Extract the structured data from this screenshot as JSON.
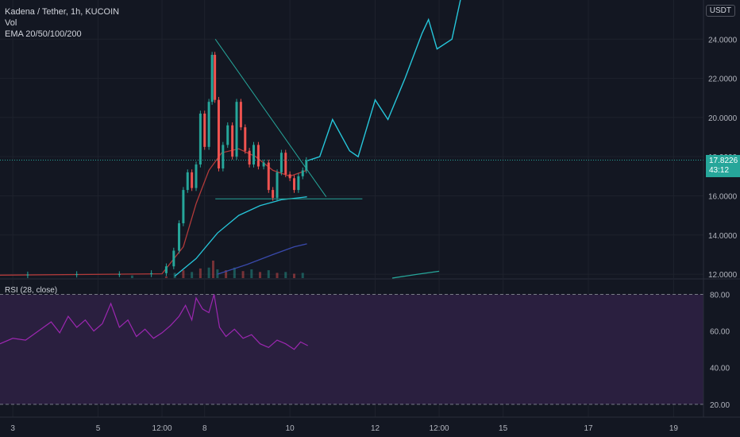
{
  "header": {
    "symbol_line": "Kadena / Tether, 1h, KUCOIN",
    "vol_label": "Vol",
    "ema_label": "EMA 20/50/100/200",
    "currency": "USDT"
  },
  "rsi": {
    "label": "RSI (28, close)"
  },
  "last_price": {
    "value": "17.8226",
    "countdown": "43:12",
    "color": "#26a69a"
  },
  "colors": {
    "up": "#26a69a",
    "down": "#ef5350",
    "ema20": "#b23a3a",
    "ema50": "#26c6da",
    "ema100": "#3949ab",
    "ema200": "#26a69a",
    "pattern": "#26a69a",
    "projection": "#26c6da",
    "rsi": "#9c27b0",
    "rsi_band": "#2a1f3f"
  },
  "chart_data": [
    {
      "type": "candlestick",
      "title": "Kadena / Tether, 1h, KUCOIN",
      "y_ticks": [
        12.0,
        14.0,
        16.0,
        18.0,
        20.0,
        22.0,
        24.0
      ],
      "y_tick_labels": [
        "12.0000",
        "14.0000",
        "16.0000",
        "18.0000",
        "20.0000",
        "22.0000",
        "24.0000"
      ],
      "ylim": [
        11.8,
        26.0
      ],
      "x_ticks": [
        "3",
        "5",
        "12:00",
        "8",
        "10",
        "12",
        "12:00",
        "15",
        "17",
        "19"
      ],
      "x_tick_values": [
        0.0,
        2.0,
        3.5,
        4.5,
        6.5,
        8.5,
        10.0,
        11.5,
        13.5,
        15.5
      ],
      "xlim": [
        -0.3,
        16.2
      ],
      "last_price": 17.8226,
      "price_points": [
        [
          -0.3,
          11.95
        ],
        [
          1.0,
          11.98
        ],
        [
          2.0,
          12.0
        ],
        [
          3.0,
          12.0
        ],
        [
          3.5,
          12.05
        ],
        [
          3.7,
          12.4
        ],
        [
          3.85,
          13.2
        ],
        [
          3.95,
          14.6
        ],
        [
          4.05,
          16.3
        ],
        [
          4.15,
          17.2
        ],
        [
          4.25,
          16.4
        ],
        [
          4.35,
          17.6
        ],
        [
          4.45,
          20.2
        ],
        [
          4.55,
          18.5
        ],
        [
          4.65,
          20.8
        ],
        [
          4.7,
          23.2
        ],
        [
          4.78,
          20.9
        ],
        [
          4.88,
          17.4
        ],
        [
          4.98,
          18.6
        ],
        [
          5.1,
          19.6
        ],
        [
          5.2,
          18.0
        ],
        [
          5.3,
          20.8
        ],
        [
          5.4,
          19.5
        ],
        [
          5.5,
          18.3
        ],
        [
          5.6,
          17.6
        ],
        [
          5.7,
          18.6
        ],
        [
          5.82,
          17.5
        ],
        [
          5.95,
          17.7
        ],
        [
          6.05,
          16.3
        ],
        [
          6.15,
          15.9
        ],
        [
          6.25,
          17.2
        ],
        [
          6.35,
          18.2
        ],
        [
          6.45,
          17.1
        ],
        [
          6.55,
          16.9
        ],
        [
          6.65,
          16.3
        ],
        [
          6.75,
          17.0
        ],
        [
          6.85,
          17.3
        ],
        [
          6.92,
          17.82
        ]
      ],
      "ema_series": [
        {
          "key": "ema20",
          "points": [
            [
              -0.3,
              11.95
            ],
            [
              3.5,
              12.02
            ],
            [
              4.0,
              13.4
            ],
            [
              4.3,
              15.6
            ],
            [
              4.6,
              17.3
            ],
            [
              4.9,
              18.2
            ],
            [
              5.3,
              18.4
            ],
            [
              5.7,
              18.0
            ],
            [
              6.1,
              17.3
            ],
            [
              6.5,
              17.0
            ],
            [
              6.9,
              17.3
            ]
          ]
        },
        {
          "key": "ema50",
          "points": [
            [
              3.8,
              11.9
            ],
            [
              4.3,
              12.8
            ],
            [
              4.8,
              14.1
            ],
            [
              5.3,
              15.0
            ],
            [
              5.8,
              15.5
            ],
            [
              6.3,
              15.8
            ],
            [
              6.9,
              15.95
            ]
          ]
        },
        {
          "key": "ema100",
          "points": [
            [
              4.8,
              12.0
            ],
            [
              5.5,
              12.5
            ],
            [
              6.1,
              13.0
            ],
            [
              6.6,
              13.4
            ],
            [
              6.9,
              13.55
            ]
          ]
        },
        {
          "key": "ema200",
          "points": [
            [
              8.9,
              11.8
            ],
            [
              9.5,
              12.0
            ],
            [
              10.0,
              12.15
            ]
          ]
        }
      ],
      "patterns": [
        {
          "key": "resistance",
          "points": [
            [
              4.75,
              24.0
            ],
            [
              7.35,
              15.95
            ]
          ]
        },
        {
          "key": "support",
          "points": [
            [
              4.75,
              15.85
            ],
            [
              8.2,
              15.85
            ]
          ]
        }
      ],
      "projection": [
        [
          6.92,
          17.8
        ],
        [
          7.2,
          18.0
        ],
        [
          7.5,
          19.9
        ],
        [
          7.9,
          18.3
        ],
        [
          8.1,
          18.0
        ],
        [
          8.5,
          20.9
        ],
        [
          8.8,
          19.9
        ],
        [
          9.2,
          22.0
        ],
        [
          9.6,
          24.3
        ],
        [
          9.75,
          25.0
        ],
        [
          9.95,
          23.5
        ],
        [
          10.3,
          24.0
        ],
        [
          10.5,
          26.0
        ]
      ],
      "volume": [
        [
          2.8,
          0.15
        ],
        [
          3.6,
          0.1
        ],
        [
          3.8,
          0.3
        ],
        [
          4.0,
          0.45
        ],
        [
          4.2,
          0.35
        ],
        [
          4.4,
          0.55
        ],
        [
          4.6,
          0.6
        ],
        [
          4.7,
          1.0
        ],
        [
          4.8,
          0.5
        ],
        [
          5.0,
          0.45
        ],
        [
          5.2,
          0.6
        ],
        [
          5.4,
          0.4
        ],
        [
          5.6,
          0.5
        ],
        [
          5.8,
          0.35
        ],
        [
          6.0,
          0.45
        ],
        [
          6.2,
          0.3
        ],
        [
          6.4,
          0.35
        ],
        [
          6.6,
          0.25
        ],
        [
          6.8,
          0.3
        ]
      ]
    },
    {
      "type": "line",
      "title": "RSI (28, close)",
      "y_ticks": [
        20.0,
        40.0,
        60.0,
        80.0
      ],
      "y_tick_labels": [
        "20.00",
        "40.00",
        "60.00",
        "80.00"
      ],
      "ylim": [
        13.0,
        88.0
      ],
      "band": [
        20.0,
        80.0
      ],
      "series": [
        {
          "points": [
            [
              -0.3,
              53
            ],
            [
              0.0,
              56
            ],
            [
              0.3,
              55
            ],
            [
              0.6,
              60
            ],
            [
              0.9,
              65
            ],
            [
              1.1,
              59
            ],
            [
              1.3,
              68
            ],
            [
              1.5,
              62
            ],
            [
              1.7,
              66
            ],
            [
              1.9,
              60
            ],
            [
              2.1,
              64
            ],
            [
              2.3,
              75
            ],
            [
              2.5,
              62
            ],
            [
              2.7,
              66
            ],
            [
              2.9,
              57
            ],
            [
              3.1,
              61
            ],
            [
              3.3,
              56
            ],
            [
              3.5,
              59
            ],
            [
              3.7,
              63
            ],
            [
              3.9,
              68
            ],
            [
              4.05,
              74
            ],
            [
              4.2,
              66
            ],
            [
              4.3,
              78
            ],
            [
              4.45,
              72
            ],
            [
              4.6,
              70
            ],
            [
              4.72,
              80
            ],
            [
              4.85,
              62
            ],
            [
              5.0,
              57
            ],
            [
              5.2,
              61
            ],
            [
              5.4,
              56
            ],
            [
              5.6,
              58
            ],
            [
              5.8,
              53
            ],
            [
              6.0,
              51
            ],
            [
              6.2,
              55
            ],
            [
              6.4,
              53
            ],
            [
              6.6,
              50
            ],
            [
              6.75,
              54
            ],
            [
              6.92,
              52
            ]
          ]
        }
      ]
    }
  ]
}
